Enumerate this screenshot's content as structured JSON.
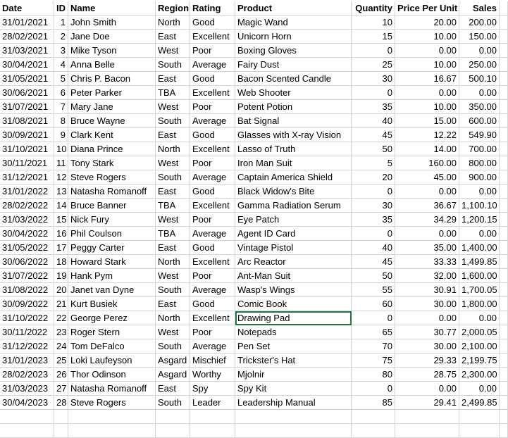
{
  "headers": [
    "Date",
    "ID",
    "Name",
    "Region",
    "Rating",
    "Product",
    "Quantity",
    "Price Per Unit",
    "Sales"
  ],
  "rows": [
    [
      "31/01/2021",
      "1",
      "John Smith",
      "North",
      "Good",
      "Magic Wand",
      "10",
      "20.00",
      "200.00"
    ],
    [
      "28/02/2021",
      "2",
      "Jane Doe",
      "East",
      "Excellent",
      "Unicorn Horn",
      "15",
      "10.00",
      "150.00"
    ],
    [
      "31/03/2021",
      "3",
      "Mike Tyson",
      "West",
      "Poor",
      "Boxing Gloves",
      "0",
      "0.00",
      "0.00"
    ],
    [
      "30/04/2021",
      "4",
      "Anna Belle",
      "South",
      "Average",
      "Fairy Dust",
      "25",
      "10.00",
      "250.00"
    ],
    [
      "31/05/2021",
      "5",
      "Chris P. Bacon",
      "East",
      "Good",
      "Bacon Scented Candle",
      "30",
      "16.67",
      "500.10"
    ],
    [
      "30/06/2021",
      "6",
      "Peter Parker",
      "TBA",
      "Excellent",
      "Web Shooter",
      "0",
      "0.00",
      "0.00"
    ],
    [
      "31/07/2021",
      "7",
      "Mary Jane",
      "West",
      "Poor",
      "Potent Potion",
      "35",
      "10.00",
      "350.00"
    ],
    [
      "31/08/2021",
      "8",
      "Bruce Wayne",
      "South",
      "Average",
      "Bat Signal",
      "40",
      "15.00",
      "600.00"
    ],
    [
      "30/09/2021",
      "9",
      "Clark Kent",
      "East",
      "Good",
      "Glasses with X-ray Vision",
      "45",
      "12.22",
      "549.90"
    ],
    [
      "31/10/2021",
      "10",
      "Diana Prince",
      "North",
      "Excellent",
      "Lasso of Truth",
      "50",
      "14.00",
      "700.00"
    ],
    [
      "30/11/2021",
      "11",
      "Tony Stark",
      "West",
      "Poor",
      "Iron Man Suit",
      "5",
      "160.00",
      "800.00"
    ],
    [
      "31/12/2021",
      "12",
      "Steve Rogers",
      "South",
      "Average",
      "Captain America Shield",
      "20",
      "45.00",
      "900.00"
    ],
    [
      "31/01/2022",
      "13",
      "Natasha Romanoff",
      "East",
      "Good",
      "Black Widow's Bite",
      "0",
      "0.00",
      "0.00"
    ],
    [
      "28/02/2022",
      "14",
      "Bruce Banner",
      "TBA",
      "Excellent",
      "Gamma Radiation Serum",
      "30",
      "36.67",
      "1,100.10"
    ],
    [
      "31/03/2022",
      "15",
      "Nick Fury",
      "West",
      "Poor",
      "Eye Patch",
      "35",
      "34.29",
      "1,200.15"
    ],
    [
      "30/04/2022",
      "16",
      "Phil Coulson",
      "TBA",
      "Average",
      "Agent ID Card",
      "0",
      "0.00",
      "0.00"
    ],
    [
      "31/05/2022",
      "17",
      "Peggy Carter",
      "East",
      "Good",
      "Vintage Pistol",
      "40",
      "35.00",
      "1,400.00"
    ],
    [
      "30/06/2022",
      "18",
      "Howard Stark",
      "North",
      "Excellent",
      "Arc Reactor",
      "45",
      "33.33",
      "1,499.85"
    ],
    [
      "31/07/2022",
      "19",
      "Hank Pym",
      "West",
      "Poor",
      "Ant-Man Suit",
      "50",
      "32.00",
      "1,600.00"
    ],
    [
      "31/08/2022",
      "20",
      "Janet van Dyne",
      "South",
      "Average",
      "Wasp's Wings",
      "55",
      "30.91",
      "1,700.05"
    ],
    [
      "30/09/2022",
      "21",
      "Kurt Busiek",
      "East",
      "Good",
      "Comic Book",
      "60",
      "30.00",
      "1,800.00"
    ],
    [
      "31/10/2022",
      "22",
      "George Perez",
      "North",
      "Excellent",
      "Drawing Pad",
      "0",
      "0.00",
      "0.00"
    ],
    [
      "30/11/2022",
      "23",
      "Roger Stern",
      "West",
      "Poor",
      "Notepads",
      "65",
      "30.77",
      "2,000.05"
    ],
    [
      "31/12/2022",
      "24",
      "Tom DeFalco",
      "South",
      "Average",
      "Pen Set",
      "70",
      "30.00",
      "2,100.00"
    ],
    [
      "31/01/2023",
      "25",
      "Loki Laufeyson",
      "Asgard",
      "Mischief",
      "Trickster's Hat",
      "75",
      "29.33",
      "2,199.75"
    ],
    [
      "28/02/2023",
      "26",
      "Thor Odinson",
      "Asgard",
      "Worthy",
      "Mjolnir",
      "80",
      "28.75",
      "2,300.00"
    ],
    [
      "31/03/2023",
      "27",
      "Natasha Romanoff",
      "East",
      "Spy",
      "Spy Kit",
      "0",
      "0.00",
      "0.00"
    ],
    [
      "30/04/2023",
      "28",
      "Steve Rogers",
      "South",
      "Leader",
      "Leadership Manual",
      "85",
      "29.41",
      "2,499.85"
    ]
  ],
  "selected_cell": {
    "row": 21,
    "col": 5
  }
}
